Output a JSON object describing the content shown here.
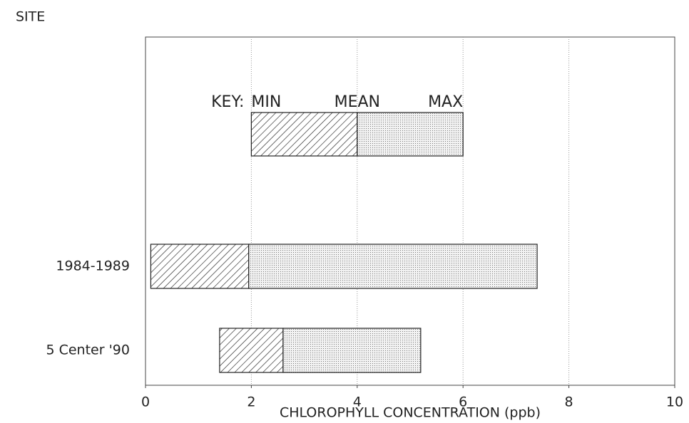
{
  "chart_data": {
    "type": "range_bar",
    "y_label": "SITE",
    "x_label": "CHLOROPHYLL CONCENTRATION (ppb)",
    "categories": [
      "1984-1989",
      "5 Center '90"
    ],
    "min": [
      0.1,
      1.4
    ],
    "mean": [
      1.95,
      2.6
    ],
    "max": [
      7.4,
      5.2
    ],
    "key": {
      "title": "KEY:",
      "labels": [
        "MIN",
        "MEAN",
        "MAX"
      ],
      "values": [
        2,
        4,
        6
      ]
    },
    "xlim": [
      0,
      10
    ],
    "xticks": [
      0,
      2,
      4,
      6,
      8,
      10
    ],
    "grid": true
  }
}
